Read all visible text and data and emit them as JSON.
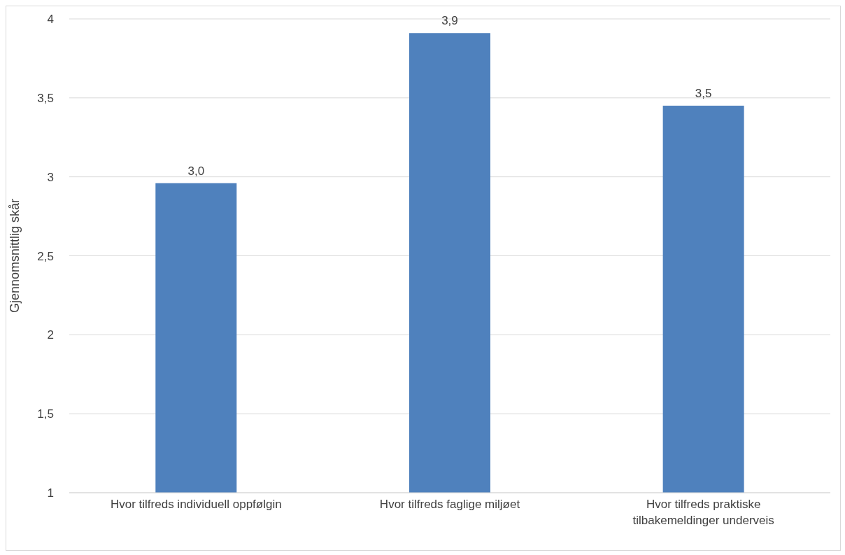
{
  "chart_data": {
    "type": "bar",
    "ylabel": "Gjennomsnittlig skår",
    "categories": [
      "Hvor tilfreds individuell oppfølgin",
      "Hvor tilfreds faglige miljøet",
      "Hvor tilfreds praktiske tilbakemeldinger underveis"
    ],
    "values": [
      2.96,
      3.91,
      3.45
    ],
    "color": "#4f81bd",
    "value_labels": [
      "3,0",
      "3,9",
      "3,5"
    ],
    "ylim": [
      1,
      4
    ],
    "yticks": [
      1,
      {
        "value": 1.5,
        "label": "1,5"
      },
      2,
      {
        "value": 2.5,
        "label": "2,5"
      },
      3,
      {
        "value": 3.5,
        "label": "3,5"
      },
      4
    ],
    "grid": "y"
  }
}
